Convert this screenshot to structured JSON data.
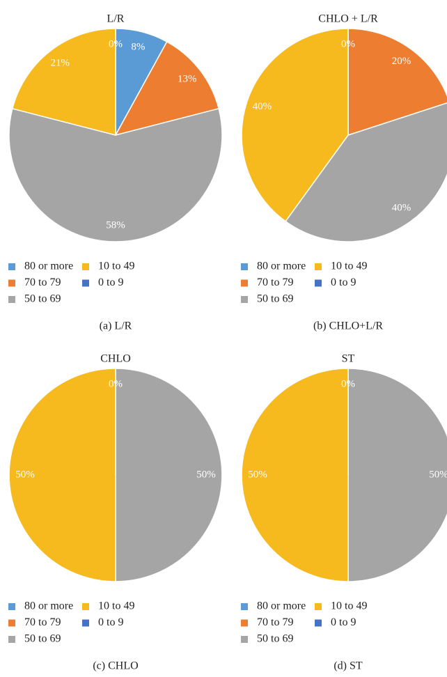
{
  "chart_data": [
    {
      "type": "pie",
      "title": "L/R",
      "caption": "(a) L/R",
      "categories": [
        "80 or more",
        "70 to 79",
        "50 to 69",
        "10 to 49",
        "0 to 9"
      ],
      "colors": [
        "#5b9bd5",
        "#ed7d31",
        "#a5a5a5",
        "#f6b91e",
        "#4472c4"
      ],
      "values": [
        8,
        13,
        58,
        21,
        0
      ],
      "value_labels": [
        "8%",
        "13%",
        "58%",
        "21%",
        "0%"
      ]
    },
    {
      "type": "pie",
      "title": "CHLO + L/R",
      "caption": "(b) CHLO+L/R",
      "categories": [
        "80 or more",
        "70 to 79",
        "50 to 69",
        "10 to 49",
        "0 to 9"
      ],
      "colors": [
        "#5b9bd5",
        "#ed7d31",
        "#a5a5a5",
        "#f6b91e",
        "#4472c4"
      ],
      "values": [
        0,
        20,
        40,
        40,
        0
      ],
      "value_labels": [
        null,
        "20%",
        "40%",
        "40%",
        "0%"
      ]
    },
    {
      "type": "pie",
      "title": "CHLO",
      "caption": "(c) CHLO",
      "categories": [
        "80 or more",
        "70 to 79",
        "50 to 69",
        "10 to 49",
        "0 to 9"
      ],
      "colors": [
        "#5b9bd5",
        "#ed7d31",
        "#a5a5a5",
        "#f6b91e",
        "#4472c4"
      ],
      "values": [
        0,
        0,
        50,
        50,
        0
      ],
      "value_labels": [
        null,
        null,
        "50%",
        "50%",
        "0%"
      ]
    },
    {
      "type": "pie",
      "title": "ST",
      "caption": "(d) ST",
      "categories": [
        "80 or more",
        "70 to 79",
        "50 to 69",
        "10 to 49",
        "0 to 9"
      ],
      "colors": [
        "#5b9bd5",
        "#ed7d31",
        "#a5a5a5",
        "#f6b91e",
        "#4472c4"
      ],
      "values": [
        0,
        0,
        50,
        50,
        0
      ],
      "value_labels": [
        null,
        null,
        "50%",
        "50%",
        "0%"
      ]
    }
  ]
}
